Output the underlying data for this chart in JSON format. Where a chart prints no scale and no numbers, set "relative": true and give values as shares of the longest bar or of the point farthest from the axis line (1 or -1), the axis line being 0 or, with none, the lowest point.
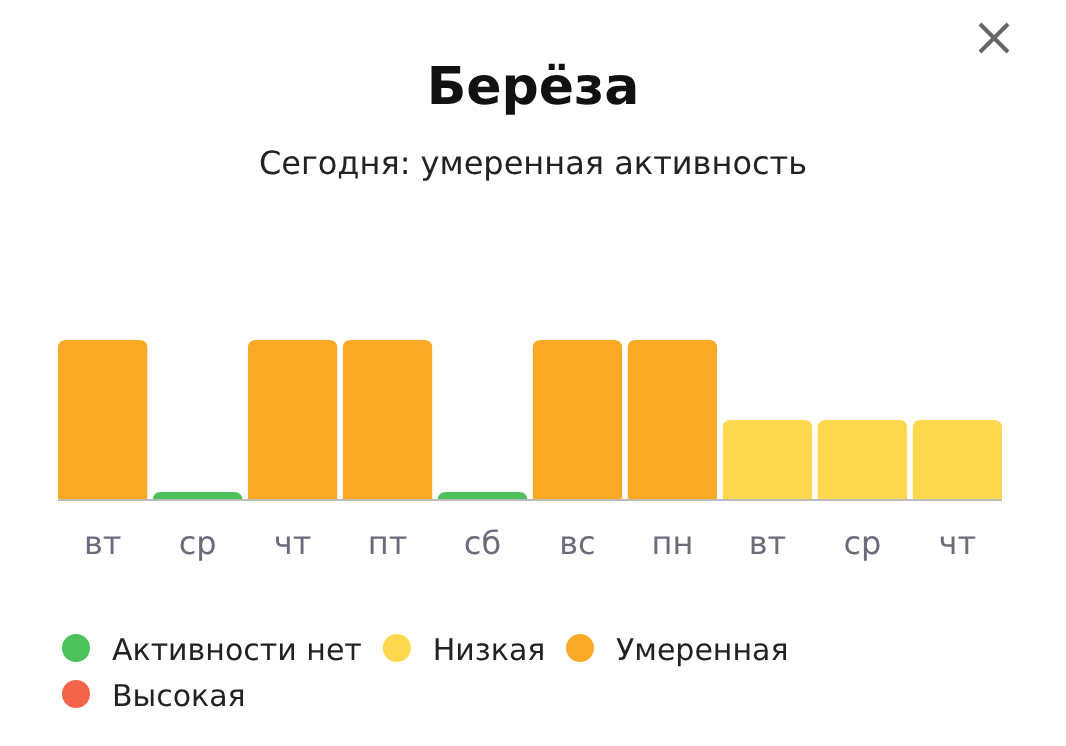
{
  "chart_data": {
    "type": "bar",
    "title": "Берёза",
    "subtitle": "Сегодня: умеренная активность",
    "relative": true,
    "legend": "bottom",
    "categories": [
      "вт",
      "ср",
      "чт",
      "пт",
      "сб",
      "вс",
      "пн",
      "вт",
      "ср",
      "чт"
    ],
    "series": [
      {
        "name": "Активности нет",
        "color": "#4cc15a",
        "values": [
          null,
          0.05,
          null,
          null,
          0.05,
          null,
          null,
          null,
          null,
          null
        ]
      },
      {
        "name": "Низкая",
        "color": "#fed94f",
        "values": [
          null,
          null,
          null,
          null,
          null,
          null,
          null,
          0.5,
          0.5,
          0.5
        ]
      },
      {
        "name": "Умеренная",
        "color": "#faa926",
        "values": [
          1,
          null,
          1,
          1,
          null,
          1,
          1,
          null,
          null,
          null
        ]
      },
      {
        "name": "Высокая",
        "color": "#f4644b",
        "values": [
          null,
          null,
          null,
          null,
          null,
          null,
          null,
          null,
          null,
          null
        ]
      }
    ]
  }
}
